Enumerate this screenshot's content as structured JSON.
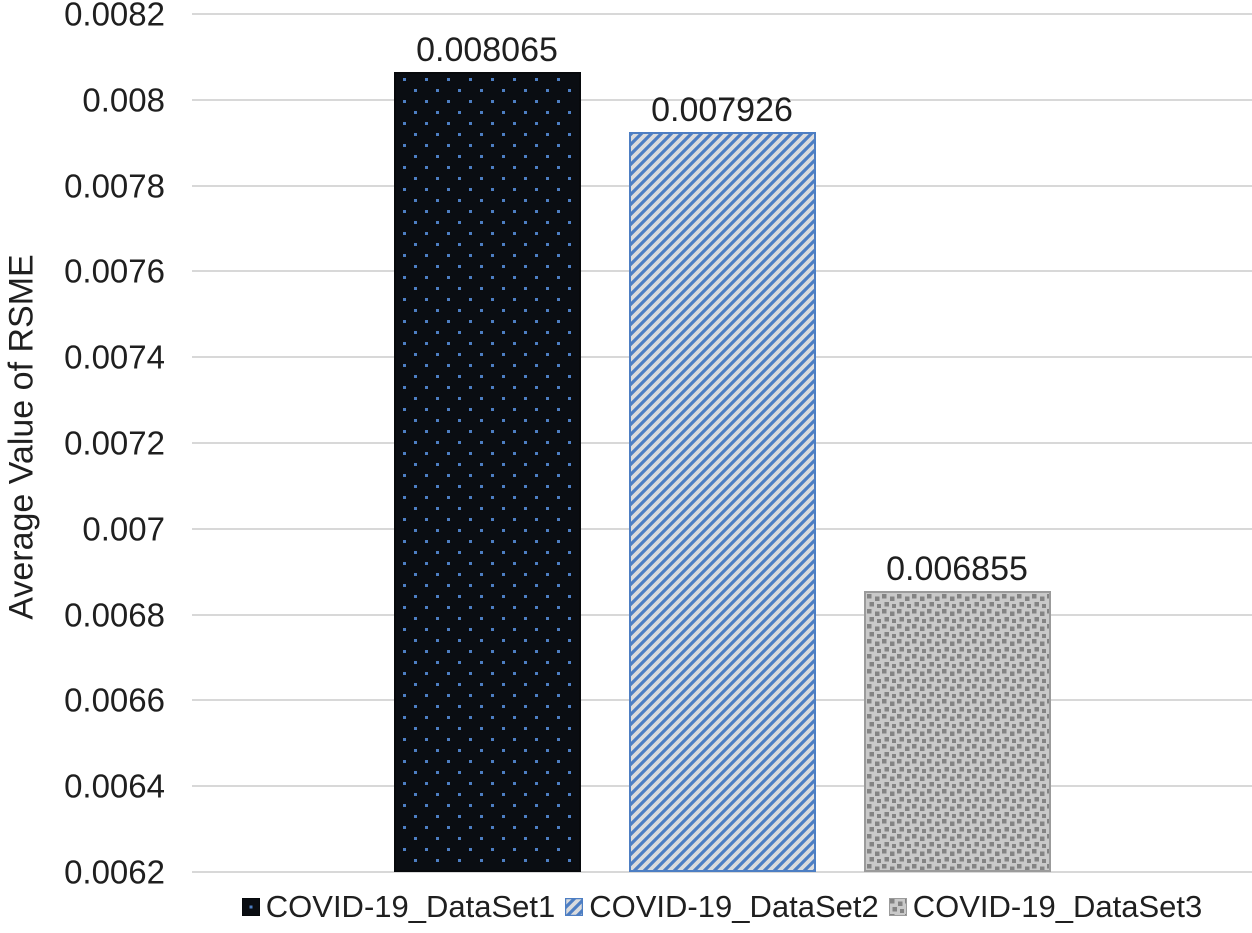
{
  "chart_data": {
    "type": "bar",
    "title": "",
    "xlabel": "",
    "ylabel": "Average Value of RSME",
    "ylim": [
      0.0062,
      0.0082
    ],
    "yticks": [
      0.0082,
      0.008,
      0.0078,
      0.0076,
      0.0074,
      0.0072,
      0.007,
      0.0068,
      0.0066,
      0.0064,
      0.0062
    ],
    "ytick_labels": [
      "0.0082",
      "0.008",
      "0.0078",
      "0.0076",
      "0.0074",
      "0.0072",
      "0.007",
      "0.0068",
      "0.0066",
      "0.0064",
      "0.0062"
    ],
    "grid": true,
    "legend_position": "bottom",
    "categories": [
      ""
    ],
    "series": [
      {
        "name": "COVID-19_DataSet1",
        "value": 0.008065,
        "label": "0.008065",
        "pattern": "blue-dots-on-black",
        "fill_color": "#0a0d12",
        "accent_color": "#4d7ec3"
      },
      {
        "name": "COVID-19_DataSet2",
        "value": 0.007926,
        "label": "0.007926",
        "pattern": "blue-diagonal-hatch-on-light-gray",
        "fill_color": "#dadbdd",
        "accent_color": "#4d7ec3"
      },
      {
        "name": "COVID-19_DataSet3",
        "value": 0.006855,
        "label": "0.006855",
        "pattern": "gray-checker-dither",
        "fill_color": "#c9c9c9",
        "accent_color": "#838383"
      }
    ]
  },
  "colors": {
    "background": "#ffffff",
    "gridline": "#d8d8d8",
    "text": "#1f1f1f",
    "accent_blue": "#4d7ec3"
  }
}
